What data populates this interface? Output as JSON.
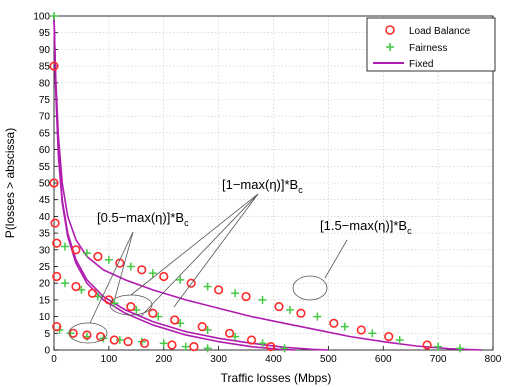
{
  "chart_data": {
    "type": "line",
    "title": "",
    "xlabel": "Traffic losses (Mbps)",
    "ylabel": "P(losses > abscissa)",
    "xlim": [
      0,
      800
    ],
    "ylim": [
      0,
      100
    ],
    "xticks": [
      "0",
      "100",
      "200",
      "300",
      "400",
      "500",
      "600",
      "700",
      "800"
    ],
    "yticks": [
      "0",
      "5",
      "10",
      "15",
      "20",
      "25",
      "30",
      "35",
      "40",
      "45",
      "50",
      "55",
      "60",
      "65",
      "70",
      "75",
      "80",
      "85",
      "90",
      "95",
      "100"
    ],
    "grid": true,
    "legend_position": "top-right",
    "legend": [
      "Load Balance",
      "Fairness",
      "Fixed"
    ],
    "colors": {
      "load_balance": "#ff2a2a",
      "fairness": "#46c846",
      "fixed": "#b01cb0"
    },
    "series": [
      {
        "name": "Load Balance",
        "marker": "circle",
        "group": "0.5",
        "x": [
          2,
          5,
          35,
          60,
          85,
          110,
          135,
          165,
          215,
          255
        ],
        "y": [
          38,
          7,
          5,
          4.5,
          4,
          3,
          2.5,
          2,
          1.5,
          1
        ]
      },
      {
        "name": "Load Balance",
        "marker": "circle",
        "group": "1",
        "x": [
          0,
          5,
          40,
          70,
          100,
          140,
          180,
          220,
          270,
          320,
          360,
          395
        ],
        "y": [
          50,
          22,
          19,
          17,
          15,
          13,
          11,
          9,
          7,
          5,
          3,
          1
        ]
      },
      {
        "name": "Load Balance",
        "marker": "circle",
        "group": "1.5",
        "x": [
          0,
          5,
          40,
          80,
          120,
          160,
          200,
          250,
          300,
          350,
          410,
          450,
          510,
          560,
          610,
          680
        ],
        "y": [
          85,
          32,
          30,
          28,
          26,
          24,
          22,
          20,
          18,
          16,
          13,
          11,
          8,
          6,
          4,
          1.5
        ]
      },
      {
        "name": "Fairness",
        "marker": "plus",
        "group": "0.5",
        "x": [
          0,
          10,
          30,
          60,
          90,
          120,
          160,
          200,
          240,
          280
        ],
        "y": [
          100,
          6,
          5,
          4,
          3.5,
          3,
          2.5,
          2,
          1,
          0.5
        ]
      },
      {
        "name": "Fairness",
        "marker": "plus",
        "group": "1",
        "x": [
          20,
          50,
          80,
          110,
          150,
          190,
          230,
          280,
          330,
          380,
          420
        ],
        "y": [
          20,
          18,
          16,
          14,
          12,
          10,
          8,
          6,
          4,
          2,
          0.5
        ]
      },
      {
        "name": "Fairness",
        "marker": "plus",
        "group": "1.5",
        "x": [
          20,
          60,
          100,
          140,
          180,
          230,
          280,
          330,
          380,
          430,
          480,
          530,
          580,
          630,
          700,
          740
        ],
        "y": [
          31,
          29,
          27,
          25,
          23,
          21,
          19,
          17,
          15,
          12,
          10,
          7,
          5,
          3,
          1,
          0.5
        ]
      },
      {
        "name": "Fixed",
        "marker": "line",
        "x": [
          0,
          3,
          8,
          15,
          25,
          40,
          60,
          90,
          130,
          180,
          240,
          300,
          360,
          420,
          470,
          500
        ],
        "y": [
          100,
          80,
          60,
          45,
          35,
          27,
          21,
          16,
          12,
          8.5,
          5.5,
          3.5,
          2,
          0.8,
          0.2,
          0
        ]
      },
      {
        "name": "Fixed",
        "marker": "line",
        "x": [
          0,
          3,
          8,
          15,
          25,
          40,
          60,
          90,
          130,
          180,
          240,
          300,
          360,
          410,
          440
        ],
        "y": [
          100,
          78,
          58,
          44,
          34,
          26,
          20,
          15,
          11,
          7.5,
          4.5,
          2.5,
          1,
          0.2,
          0
        ]
      },
      {
        "name": "Fixed",
        "marker": "line",
        "x": [
          0,
          3,
          8,
          15,
          25,
          40,
          60,
          90,
          130,
          180,
          240,
          300,
          360,
          420,
          480,
          540,
          600,
          660,
          720,
          780
        ],
        "y": [
          100,
          82,
          64,
          50,
          40,
          33,
          28,
          24,
          21,
          18,
          15,
          12.5,
          10,
          8,
          6,
          4,
          2.5,
          1.2,
          0.4,
          0
        ]
      }
    ],
    "annotations": [
      {
        "text": "[0.5−max(η)]*B",
        "sub": "c"
      },
      {
        "text": "[1−max(η)]*B",
        "sub": "c"
      },
      {
        "text": "[1.5−max(η)]*B",
        "sub": "c"
      }
    ]
  }
}
